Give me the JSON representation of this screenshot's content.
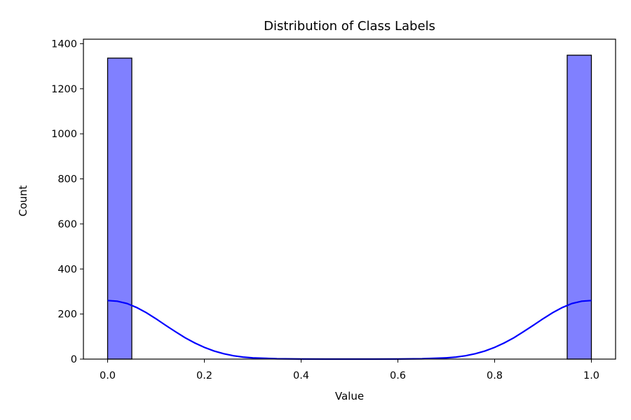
{
  "chart_data": {
    "type": "bar",
    "subtype": "histogram-with-kde",
    "title": "Distribution of Class Labels",
    "xlabel": "Value",
    "ylabel": "Count",
    "xlim": [
      -0.05,
      1.05
    ],
    "ylim": [
      0,
      1420
    ],
    "x_ticks": [
      0.0,
      0.2,
      0.4,
      0.6,
      0.8,
      1.0
    ],
    "x_tick_labels": [
      "0.0",
      "0.2",
      "0.4",
      "0.6",
      "0.8",
      "1.0"
    ],
    "y_ticks": [
      0,
      200,
      400,
      600,
      800,
      1000,
      1200,
      1400
    ],
    "y_tick_labels": [
      "0",
      "200",
      "400",
      "600",
      "800",
      "1000",
      "1200",
      "1400"
    ],
    "bins": [
      {
        "x0": 0.0,
        "x1": 0.05,
        "count": 1336
      },
      {
        "x0": 0.95,
        "x1": 1.0,
        "count": 1349
      }
    ],
    "kde": {
      "x": [
        0.0,
        0.02,
        0.04,
        0.06,
        0.08,
        0.1,
        0.12,
        0.14,
        0.16,
        0.18,
        0.2,
        0.22,
        0.24,
        0.26,
        0.28,
        0.3,
        0.35,
        0.4,
        0.45,
        0.5,
        0.55,
        0.6,
        0.65,
        0.7,
        0.72,
        0.74,
        0.76,
        0.78,
        0.8,
        0.82,
        0.84,
        0.86,
        0.88,
        0.9,
        0.92,
        0.94,
        0.96,
        0.98,
        1.0
      ],
      "y": [
        260,
        257,
        247,
        229,
        206,
        179,
        150,
        122,
        95,
        72,
        52,
        36,
        24,
        15,
        9,
        5.5,
        1.5,
        0.4,
        0.1,
        0,
        0.1,
        0.4,
        1.5,
        5.5,
        9,
        15,
        24,
        36,
        52,
        72,
        95,
        122,
        150,
        179,
        206,
        229,
        247,
        257,
        260
      ]
    },
    "colors": {
      "bar_fill": "#8080ff",
      "bar_edge": "#000000",
      "kde_line": "#0000ff"
    },
    "grid": false,
    "legend": "none"
  }
}
